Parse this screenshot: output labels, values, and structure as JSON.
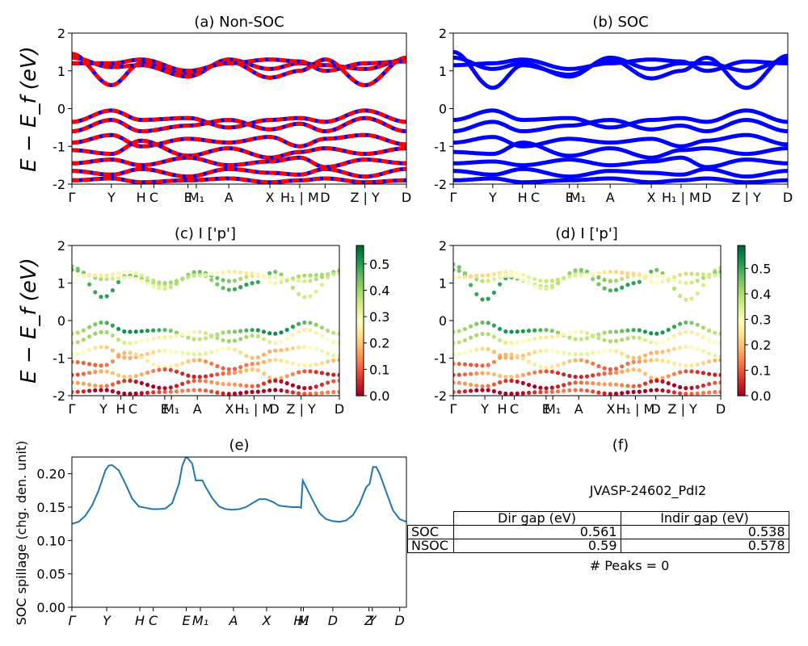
{
  "colors": {
    "nonsoc_red": "#ff0000",
    "nonsoc_blue": "#0000ff",
    "soc_blue": "#0000ff",
    "spillage_line": "#1f77b4",
    "colormap": [
      "#a50026",
      "#d73027",
      "#f46d43",
      "#fdae61",
      "#fee08b",
      "#ffffbf",
      "#d9ef8b",
      "#a6d96a",
      "#66bd63",
      "#1a9850",
      "#006837"
    ]
  },
  "band_kpoints": {
    "labels": [
      "Γ",
      "Y",
      "H",
      "C",
      "E",
      "M₁",
      "A",
      "X",
      "H₁ | M",
      "D",
      "Z | Y",
      "D"
    ],
    "positions": [
      0,
      0.118,
      0.207,
      0.245,
      0.347,
      0.372,
      0.469,
      0.592,
      0.681,
      0.757,
      0.876,
      1.0
    ],
    "labels_small": [
      "Γ",
      "Y",
      "H",
      "C",
      "E",
      "M₁",
      "A",
      "X",
      "H₁ | M",
      "D",
      "Z | Y",
      "D"
    ],
    "positions_small": [
      0,
      0.118,
      0.183,
      0.228,
      0.347,
      0.372,
      0.469,
      0.589,
      0.681,
      0.757,
      0.857,
      1.0
    ]
  },
  "chart_data": [
    {
      "panel": "a",
      "type": "line",
      "title": "(a) Non-SOC",
      "ylabel": "E − E_f (eV)",
      "ylim": [
        -2,
        2
      ],
      "yticks": [
        -2,
        -1,
        0,
        1,
        2
      ],
      "conduction_bands": [
        {
          "name": "",
          "x": [
            0,
            0.118,
            0.207,
            0.347,
            0.469,
            0.592,
            0.681,
            0.757,
            0.876,
            1.0
          ],
          "y": [
            1.45,
            0.62,
            1.2,
            0.95,
            1.25,
            0.82,
            1.0,
            1.3,
            0.62,
            1.35
          ]
        },
        {
          "name": "",
          "x": [
            0,
            0.118,
            0.207,
            0.347,
            0.469,
            0.592,
            0.681,
            0.757,
            0.876,
            1.0
          ],
          "y": [
            1.35,
            1.1,
            1.15,
            0.85,
            1.3,
            1.05,
            1.2,
            1.15,
            1.05,
            1.3
          ]
        },
        {
          "name": "",
          "x": [
            0,
            0.118,
            0.207,
            0.347,
            0.469,
            0.592,
            0.681,
            0.757,
            0.876,
            1.0
          ],
          "y": [
            1.2,
            1.2,
            1.3,
            1.0,
            1.2,
            1.3,
            1.25,
            1.0,
            1.2,
            1.25
          ]
        }
      ],
      "valence_bands": [
        {
          "name": "",
          "x": [
            0,
            0.118,
            0.207,
            0.347,
            0.469,
            0.592,
            0.681,
            0.757,
            0.876,
            1.0
          ],
          "y": [
            -0.35,
            -0.05,
            -0.3,
            -0.25,
            -0.5,
            -0.3,
            -0.25,
            -0.35,
            -0.05,
            -0.35
          ]
        },
        {
          "name": "",
          "x": [
            0,
            0.118,
            0.207,
            0.347,
            0.469,
            0.592,
            0.681,
            0.757,
            0.876,
            1.0
          ],
          "y": [
            -0.6,
            -0.3,
            -0.6,
            -0.45,
            -0.3,
            -0.55,
            -0.4,
            -0.6,
            -0.25,
            -0.6
          ]
        },
        {
          "name": "",
          "x": [
            0,
            0.118,
            0.207,
            0.347,
            0.469,
            0.592,
            0.681,
            0.757,
            0.876,
            1.0
          ],
          "y": [
            -0.9,
            -0.7,
            -1.0,
            -0.8,
            -0.9,
            -0.75,
            -1.0,
            -0.8,
            -0.7,
            -0.95
          ]
        },
        {
          "name": "",
          "x": [
            0,
            0.118,
            0.207,
            0.347,
            0.469,
            0.592,
            0.681,
            0.757,
            0.876,
            1.0
          ],
          "y": [
            -1.1,
            -1.2,
            -0.85,
            -1.25,
            -1.05,
            -1.3,
            -1.15,
            -1.05,
            -1.2,
            -1.05
          ]
        },
        {
          "name": "",
          "x": [
            0,
            0.118,
            0.207,
            0.347,
            0.469,
            0.592,
            0.681,
            0.757,
            0.876,
            1.0
          ],
          "y": [
            -1.45,
            -1.35,
            -1.5,
            -1.3,
            -1.5,
            -1.4,
            -1.3,
            -1.55,
            -1.35,
            -1.45
          ]
        },
        {
          "name": "",
          "x": [
            0,
            0.118,
            0.207,
            0.347,
            0.469,
            0.592,
            0.681,
            0.757,
            0.876,
            1.0
          ],
          "y": [
            -1.65,
            -1.75,
            -1.6,
            -1.8,
            -1.6,
            -1.7,
            -1.75,
            -1.6,
            -1.8,
            -1.6
          ]
        },
        {
          "name": "",
          "x": [
            0,
            0.118,
            0.207,
            0.347,
            0.469,
            0.592,
            0.681,
            0.757,
            0.876,
            1.0
          ],
          "y": [
            -1.9,
            -1.85,
            -1.95,
            -1.9,
            -1.85,
            -1.95,
            -1.9,
            -1.85,
            -1.95,
            -1.9
          ]
        }
      ]
    },
    {
      "panel": "b",
      "type": "line",
      "title": "(b) SOC",
      "ylim": [
        -2,
        2
      ],
      "yticks": [
        -2,
        -1,
        0,
        1,
        2
      ],
      "conduction_bands": [
        {
          "name": "",
          "x": [
            0,
            0.118,
            0.207,
            0.347,
            0.469,
            0.592,
            0.681,
            0.757,
            0.876,
            1.0
          ],
          "y": [
            1.5,
            0.55,
            1.15,
            0.9,
            1.3,
            0.8,
            1.0,
            1.35,
            0.55,
            1.4
          ]
        },
        {
          "name": "",
          "x": [
            0,
            0.118,
            0.207,
            0.347,
            0.469,
            0.592,
            0.681,
            0.757,
            0.876,
            1.0
          ],
          "y": [
            1.35,
            1.05,
            1.2,
            0.85,
            1.35,
            1.05,
            1.2,
            1.2,
            1.0,
            1.3
          ]
        },
        {
          "name": "",
          "x": [
            0,
            0.118,
            0.207,
            0.347,
            0.469,
            0.592,
            0.681,
            0.757,
            0.876,
            1.0
          ],
          "y": [
            1.15,
            1.2,
            1.3,
            1.05,
            1.2,
            1.3,
            1.25,
            1.0,
            1.25,
            1.2
          ]
        }
      ],
      "valence_bands": [
        {
          "name": "",
          "x": [
            0,
            0.118,
            0.207,
            0.347,
            0.469,
            0.592,
            0.681,
            0.757,
            0.876,
            1.0
          ],
          "y": [
            -0.3,
            -0.05,
            -0.3,
            -0.25,
            -0.5,
            -0.3,
            -0.25,
            -0.35,
            -0.05,
            -0.35
          ]
        },
        {
          "name": "",
          "x": [
            0,
            0.118,
            0.207,
            0.347,
            0.469,
            0.592,
            0.681,
            0.757,
            0.876,
            1.0
          ],
          "y": [
            -0.6,
            -0.35,
            -0.6,
            -0.45,
            -0.3,
            -0.55,
            -0.45,
            -0.6,
            -0.3,
            -0.6
          ]
        },
        {
          "name": "",
          "x": [
            0,
            0.118,
            0.207,
            0.347,
            0.469,
            0.592,
            0.681,
            0.757,
            0.876,
            1.0
          ],
          "y": [
            -0.9,
            -0.75,
            -1.0,
            -0.8,
            -0.9,
            -0.8,
            -1.0,
            -0.85,
            -0.7,
            -0.95
          ]
        },
        {
          "name": "",
          "x": [
            0,
            0.118,
            0.207,
            0.347,
            0.469,
            0.592,
            0.681,
            0.757,
            0.876,
            1.0
          ],
          "y": [
            -1.15,
            -1.2,
            -0.9,
            -1.25,
            -1.05,
            -1.3,
            -1.1,
            -1.05,
            -1.2,
            -1.05
          ]
        },
        {
          "name": "",
          "x": [
            0,
            0.118,
            0.207,
            0.347,
            0.469,
            0.592,
            0.681,
            0.757,
            0.876,
            1.0
          ],
          "y": [
            -1.45,
            -1.4,
            -1.5,
            -1.35,
            -1.5,
            -1.4,
            -1.3,
            -1.55,
            -1.35,
            -1.45
          ]
        },
        {
          "name": "",
          "x": [
            0,
            0.118,
            0.207,
            0.347,
            0.469,
            0.592,
            0.681,
            0.757,
            0.876,
            1.0
          ],
          "y": [
            -1.65,
            -1.75,
            -1.6,
            -1.8,
            -1.65,
            -1.7,
            -1.75,
            -1.6,
            -1.8,
            -1.65
          ]
        },
        {
          "name": "",
          "x": [
            0,
            0.118,
            0.207,
            0.347,
            0.469,
            0.592,
            0.681,
            0.757,
            0.876,
            1.0
          ],
          "y": [
            -1.9,
            -1.85,
            -1.95,
            -1.9,
            -1.85,
            -1.95,
            -1.9,
            -1.85,
            -1.95,
            -1.9
          ]
        }
      ]
    },
    {
      "panel": "c",
      "type": "scatter",
      "title": "(c)  I ['p']",
      "ylabel": "E − E_f (eV)",
      "ylim": [
        -2,
        2
      ],
      "yticks": [
        -2,
        -1,
        0,
        1,
        2
      ],
      "colorbar": {
        "range": [
          0.0,
          0.57
        ],
        "ticks": [
          "0.0",
          "0.1",
          "0.2",
          "0.3",
          "0.4",
          "0.5"
        ],
        "tick_values": [
          0.0,
          0.1,
          0.2,
          0.3,
          0.4,
          0.5
        ]
      },
      "band_weights": [
        0.42,
        0.38,
        0.32,
        0.45,
        0.33,
        0.25,
        0.18,
        0.12,
        0.08,
        0.05
      ]
    },
    {
      "panel": "d",
      "type": "scatter",
      "title": "(d) I ['p']",
      "ylim": [
        -2,
        2
      ],
      "yticks": [
        -2,
        -1,
        0,
        1,
        2
      ],
      "colorbar": {
        "range": [
          0.0,
          0.59
        ],
        "ticks": [
          "0.0",
          "0.1",
          "0.2",
          "0.3",
          "0.4",
          "0.5"
        ],
        "tick_values": [
          0.0,
          0.1,
          0.2,
          0.3,
          0.4,
          0.5
        ]
      },
      "band_weights": [
        0.44,
        0.38,
        0.3,
        0.46,
        0.33,
        0.26,
        0.18,
        0.12,
        0.08,
        0.05
      ]
    },
    {
      "panel": "e",
      "type": "line",
      "title": "(e)",
      "ylabel": "SOC spillage (chg. den. unit)",
      "ylim": [
        0.0,
        0.225
      ],
      "yticks": [
        0.0,
        0.05,
        0.1,
        0.15,
        0.2
      ],
      "ytick_labels": [
        "0.00",
        "0.05",
        "0.10",
        "0.15",
        "0.20"
      ],
      "xtick_labels": [
        "Γ",
        "Y",
        "H",
        "C",
        "E",
        "M₁",
        "A",
        "X",
        "H₁",
        "M",
        "D",
        "Z",
        "Y",
        "D"
      ],
      "xtick_positions": [
        0.0,
        0.104,
        0.203,
        0.243,
        0.342,
        0.384,
        0.483,
        0.582,
        0.685,
        0.692,
        0.78,
        0.888,
        0.898,
        0.98
      ],
      "x": [
        0.0,
        0.02,
        0.04,
        0.06,
        0.08,
        0.1,
        0.11,
        0.12,
        0.14,
        0.16,
        0.18,
        0.2,
        0.22,
        0.24,
        0.26,
        0.28,
        0.3,
        0.32,
        0.33,
        0.34,
        0.345,
        0.36,
        0.37,
        0.38,
        0.39,
        0.4,
        0.42,
        0.44,
        0.46,
        0.48,
        0.5,
        0.52,
        0.54,
        0.56,
        0.58,
        0.6,
        0.62,
        0.64,
        0.66,
        0.68,
        0.685,
        0.69,
        0.7,
        0.72,
        0.74,
        0.76,
        0.78,
        0.8,
        0.82,
        0.84,
        0.86,
        0.87,
        0.88,
        0.89,
        0.9,
        0.91,
        0.92,
        0.94,
        0.96,
        0.98,
        1.0
      ],
      "y": [
        0.125,
        0.128,
        0.137,
        0.152,
        0.175,
        0.205,
        0.212,
        0.213,
        0.205,
        0.185,
        0.163,
        0.151,
        0.149,
        0.147,
        0.147,
        0.148,
        0.156,
        0.185,
        0.212,
        0.224,
        0.224,
        0.215,
        0.19,
        0.19,
        0.19,
        0.18,
        0.163,
        0.151,
        0.147,
        0.146,
        0.147,
        0.15,
        0.156,
        0.162,
        0.162,
        0.158,
        0.152,
        0.151,
        0.15,
        0.15,
        0.149,
        0.19,
        0.18,
        0.16,
        0.141,
        0.132,
        0.129,
        0.128,
        0.13,
        0.138,
        0.155,
        0.168,
        0.18,
        0.185,
        0.21,
        0.21,
        0.2,
        0.172,
        0.145,
        0.132,
        0.128
      ]
    }
  ],
  "panel_f": {
    "title": "(f)",
    "subtitle": "JVASP-24602_PdI2",
    "table": {
      "headers": [
        "Dir gap (eV)",
        "Indir gap (eV)"
      ],
      "rows": [
        {
          "label": "SOC",
          "dir": "0.561",
          "indir": "0.538"
        },
        {
          "label": "NSOC",
          "dir": "0.59",
          "indir": "0.578"
        }
      ]
    },
    "peaks": "# Peaks = 0"
  }
}
